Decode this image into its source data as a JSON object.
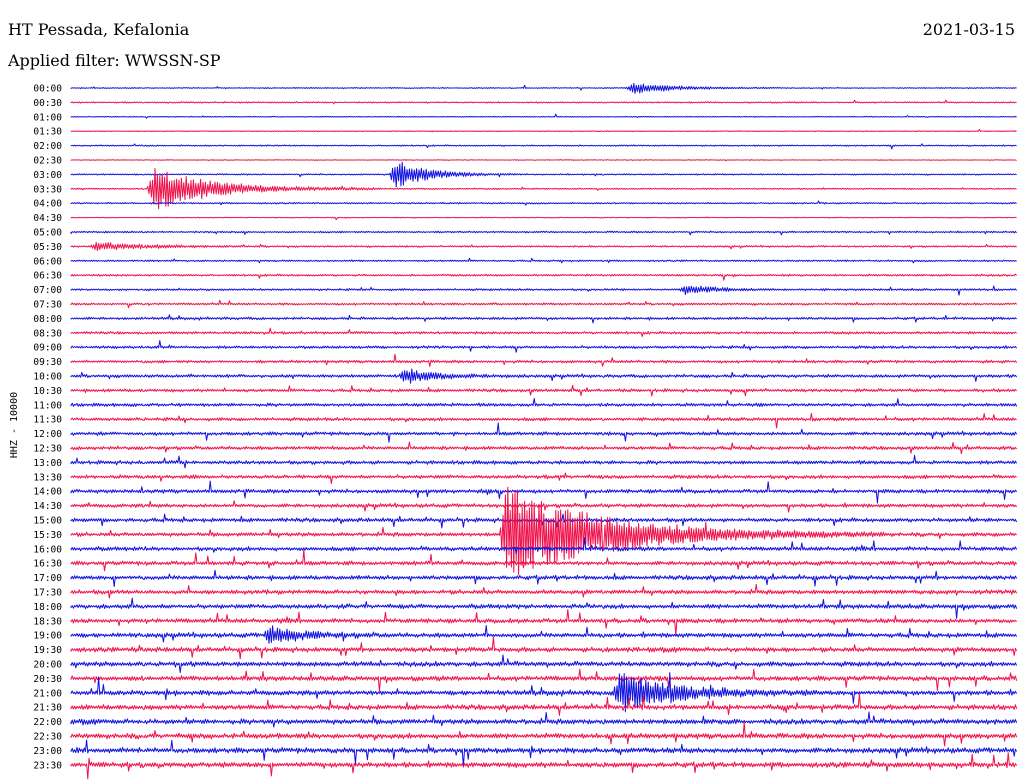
{
  "header": {
    "station": "HT Pessada, Kefalonia",
    "date": "2021-03-15",
    "filter": "Applied filter: WWSSN-SP"
  },
  "chart_data": {
    "type": "line",
    "channel_label": "HHZ - 10000",
    "time_labels": [
      "00:00",
      "00:30",
      "01:00",
      "01:30",
      "02:00",
      "02:30",
      "03:00",
      "03:30",
      "04:00",
      "04:30",
      "05:00",
      "05:30",
      "06:00",
      "06:30",
      "07:00",
      "07:30",
      "08:00",
      "08:30",
      "09:00",
      "09:30",
      "10:00",
      "10:30",
      "11:00",
      "11:30",
      "12:00",
      "12:30",
      "13:00",
      "13:30",
      "14:00",
      "14:30",
      "15:00",
      "15:30",
      "16:00",
      "16:30",
      "17:00",
      "17:30",
      "18:00",
      "18:30",
      "19:00",
      "19:30",
      "20:00",
      "20:30",
      "21:00",
      "21:30",
      "22:00",
      "22:30",
      "23:00",
      "23:30"
    ],
    "colors": [
      "#1010e0",
      "#f0104a"
    ],
    "trace_minutes": 30,
    "noise_level": [
      0.6,
      0.8,
      0.5,
      0.5,
      0.8,
      0.5,
      0.8,
      0.8,
      0.9,
      0.5,
      1.0,
      1.0,
      1.0,
      1.2,
      1.2,
      1.3,
      1.5,
      1.5,
      1.6,
      1.6,
      1.8,
      1.8,
      1.9,
      1.9,
      2.0,
      2.0,
      2.1,
      2.1,
      2.2,
      2.2,
      2.3,
      2.3,
      2.4,
      2.4,
      2.5,
      2.5,
      2.6,
      2.6,
      2.7,
      2.7,
      2.8,
      2.8,
      2.9,
      2.9,
      3.0,
      3.0,
      3.1,
      3.1
    ],
    "events": [
      {
        "trace": 0,
        "minute": 17.8,
        "amplitude": 6,
        "duration": 1.2
      },
      {
        "trace": 6,
        "minute": 10.3,
        "amplitude": 14,
        "duration": 1.0
      },
      {
        "trace": 7,
        "minute": 2.6,
        "amplitude": 22,
        "duration": 1.8
      },
      {
        "trace": 11,
        "minute": 0.8,
        "amplitude": 4,
        "duration": 1.5
      },
      {
        "trace": 14,
        "minute": 19.5,
        "amplitude": 5,
        "duration": 0.8
      },
      {
        "trace": 20,
        "minute": 10.6,
        "amplitude": 7,
        "duration": 1.0
      },
      {
        "trace": 31,
        "minute": 13.8,
        "amplitude": 48,
        "duration": 3.0
      },
      {
        "trace": 38,
        "minute": 6.3,
        "amplitude": 8,
        "duration": 1.0
      },
      {
        "trace": 42,
        "minute": 17.4,
        "amplitude": 20,
        "duration": 1.6
      }
    ]
  }
}
